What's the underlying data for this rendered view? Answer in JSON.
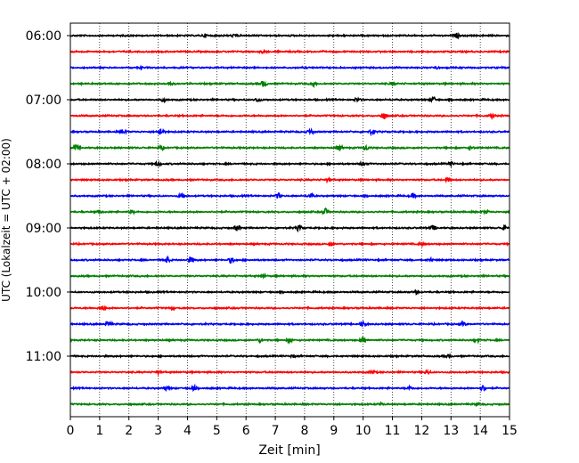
{
  "chart_data": {
    "type": "line",
    "title": "",
    "xlabel": "Zeit  [min]",
    "ylabel": "UTC (Lokalzeit = UTC + 02:00)",
    "xlim": [
      0,
      15
    ],
    "x_ticks": [
      "0",
      "1",
      "2",
      "3",
      "4",
      "5",
      "6",
      "7",
      "8",
      "9",
      "10",
      "11",
      "12",
      "13",
      "14",
      "15"
    ],
    "y_tick_labels": [
      "06:00",
      "07:00",
      "08:00",
      "09:00",
      "10:00",
      "11:00"
    ],
    "grid": {
      "x": true,
      "y": false,
      "style": "dotted"
    },
    "legend": "none",
    "series_start_utc": "06:00",
    "series_interval_min": 15,
    "series_colors": [
      "#000000",
      "#ff0000",
      "#0000ff",
      "#008000"
    ],
    "series_count": 24,
    "series": [
      {
        "start": "06:00",
        "color": "#000000",
        "events": [
          [
            4.6,
            0.6
          ],
          [
            5.6,
            0.5
          ],
          [
            13.2,
            0.9
          ]
        ]
      },
      {
        "start": "06:15",
        "color": "#ff0000",
        "events": [
          [
            6.6,
            0.4
          ]
        ]
      },
      {
        "start": "06:30",
        "color": "#0000ff",
        "events": [
          [
            2.4,
            0.4
          ],
          [
            12.5,
            0.5
          ]
        ]
      },
      {
        "start": "06:45",
        "color": "#008000",
        "events": [
          [
            3.4,
            0.5
          ],
          [
            6.6,
            1.2
          ],
          [
            8.3,
            0.9
          ],
          [
            11.0,
            0.5
          ]
        ]
      },
      {
        "start": "07:00",
        "color": "#000000",
        "events": [
          [
            3.2,
            0.7
          ],
          [
            6.4,
            0.8
          ],
          [
            9.8,
            0.7
          ],
          [
            12.4,
            1.0
          ]
        ]
      },
      {
        "start": "07:15",
        "color": "#ff0000",
        "events": [
          [
            10.7,
            1.5
          ],
          [
            14.4,
            0.9
          ]
        ]
      },
      {
        "start": "07:30",
        "color": "#0000ff",
        "events": [
          [
            1.8,
            0.8
          ],
          [
            3.1,
            1.5
          ],
          [
            8.2,
            1.0
          ],
          [
            10.3,
            0.8
          ]
        ]
      },
      {
        "start": "07:45",
        "color": "#008000",
        "events": [
          [
            0.2,
            0.9
          ],
          [
            3.1,
            0.8
          ],
          [
            9.2,
            0.8
          ],
          [
            10.1,
            0.9
          ],
          [
            13.7,
            0.6
          ]
        ]
      },
      {
        "start": "08:00",
        "color": "#000000",
        "events": [
          [
            3.0,
            0.6
          ],
          [
            10.0,
            0.6
          ],
          [
            13.0,
            0.6
          ]
        ]
      },
      {
        "start": "08:15",
        "color": "#ff0000",
        "events": [
          [
            8.8,
            0.6
          ],
          [
            12.9,
            0.8
          ]
        ]
      },
      {
        "start": "08:30",
        "color": "#0000ff",
        "events": [
          [
            3.8,
            1.1
          ],
          [
            7.1,
            1.0
          ],
          [
            8.2,
            0.9
          ],
          [
            11.7,
            0.7
          ]
        ]
      },
      {
        "start": "08:45",
        "color": "#008000",
        "events": [
          [
            1.0,
            0.6
          ],
          [
            2.1,
            0.5
          ],
          [
            8.7,
            1.3
          ],
          [
            14.2,
            0.6
          ]
        ]
      },
      {
        "start": "09:00",
        "color": "#000000",
        "events": [
          [
            5.7,
            1.2
          ],
          [
            7.8,
            1.0
          ],
          [
            12.4,
            0.9
          ],
          [
            14.8,
            0.8
          ]
        ]
      },
      {
        "start": "09:15",
        "color": "#ff0000",
        "events": [
          [
            8.9,
            0.6
          ],
          [
            12.0,
            0.5
          ]
        ]
      },
      {
        "start": "09:30",
        "color": "#0000ff",
        "events": [
          [
            3.3,
            1.0
          ],
          [
            4.1,
            1.2
          ],
          [
            5.5,
            1.1
          ],
          [
            12.3,
            0.5
          ]
        ]
      },
      {
        "start": "09:45",
        "color": "#008000",
        "events": [
          [
            6.6,
            0.4
          ]
        ]
      },
      {
        "start": "10:00",
        "color": "#000000",
        "events": [
          [
            11.8,
            0.7
          ]
        ]
      },
      {
        "start": "10:15",
        "color": "#ff0000",
        "events": [
          [
            1.1,
            0.9
          ],
          [
            3.5,
            0.4
          ]
        ]
      },
      {
        "start": "10:30",
        "color": "#0000ff",
        "events": [
          [
            1.3,
            1.0
          ],
          [
            10.0,
            0.9
          ],
          [
            13.4,
            0.8
          ]
        ]
      },
      {
        "start": "10:45",
        "color": "#008000",
        "events": [
          [
            6.5,
            0.7
          ],
          [
            7.5,
            0.8
          ],
          [
            10.0,
            0.9
          ],
          [
            13.9,
            0.6
          ]
        ]
      },
      {
        "start": "11:00",
        "color": "#000000",
        "events": [
          [
            7.6,
            0.5
          ],
          [
            12.9,
            0.5
          ]
        ]
      },
      {
        "start": "11:15",
        "color": "#ff0000",
        "events": [
          [
            3.0,
            0.6
          ],
          [
            10.3,
            0.6
          ],
          [
            12.2,
            0.7
          ]
        ]
      },
      {
        "start": "11:30",
        "color": "#0000ff",
        "events": [
          [
            3.3,
            0.6
          ],
          [
            4.2,
            0.9
          ],
          [
            11.6,
            0.6
          ],
          [
            14.1,
            1.1
          ]
        ]
      },
      {
        "start": "11:45",
        "color": "#008000",
        "events": [
          [
            10.6,
            0.4
          ],
          [
            13.9,
            0.4
          ]
        ]
      }
    ]
  }
}
